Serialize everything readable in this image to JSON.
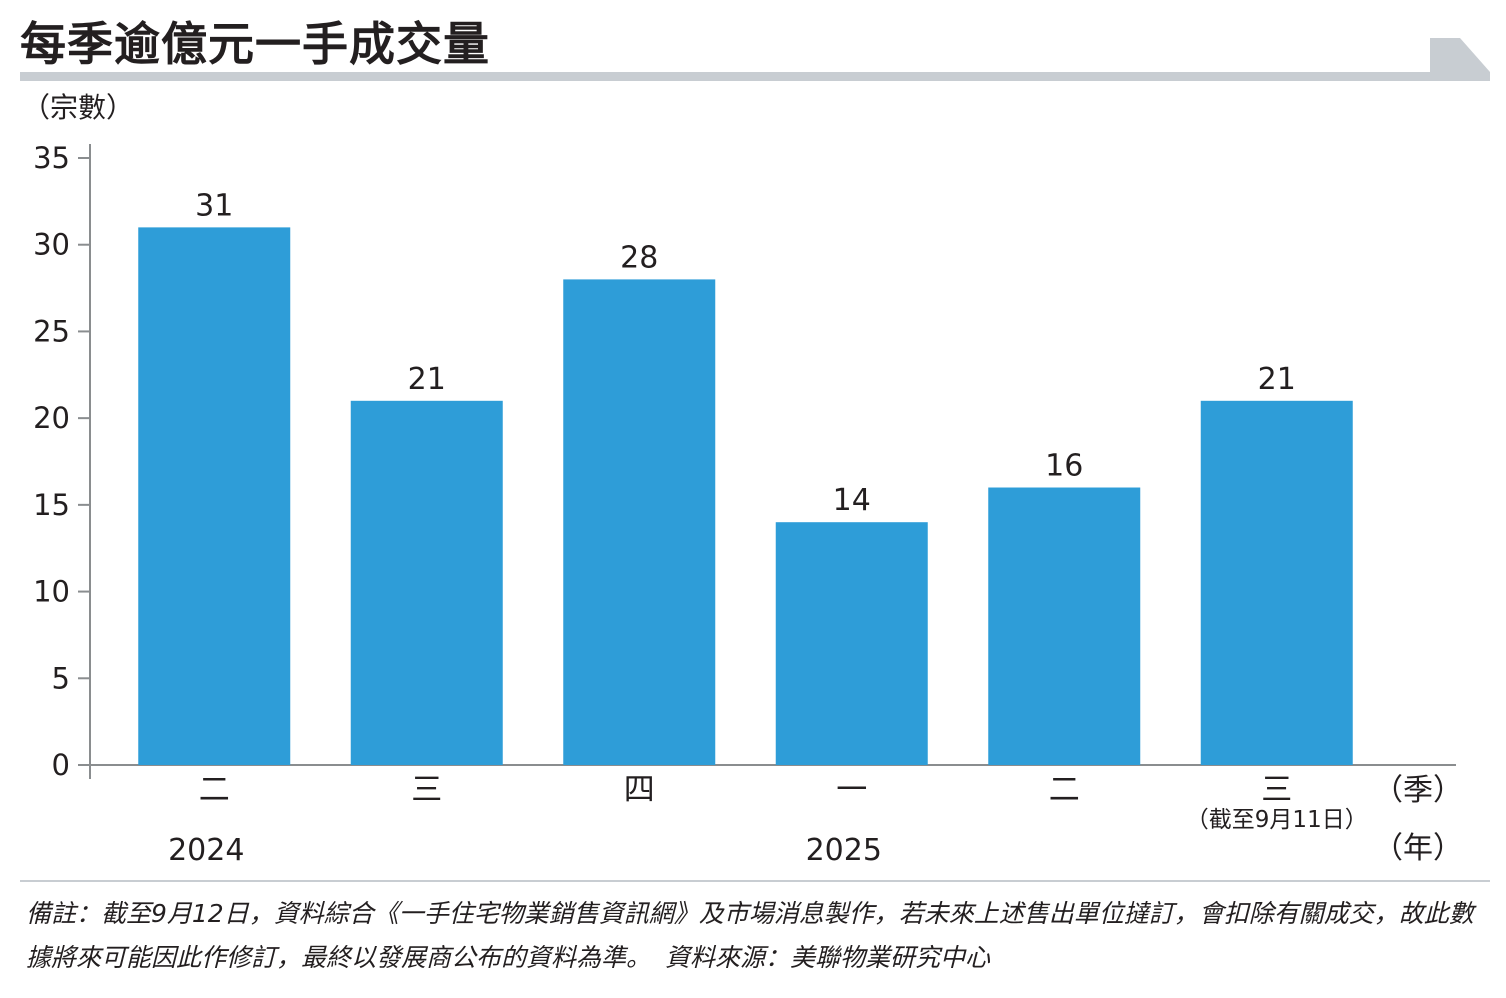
{
  "title": "每季逾億元一手成交量",
  "unit_label": "（宗數）",
  "chart_data": {
    "type": "bar",
    "categories": [
      "二",
      "三",
      "四",
      "一",
      "二",
      "三"
    ],
    "category_sublabels": [
      "",
      "",
      "",
      "",
      "",
      "（截至9月11日）"
    ],
    "values": [
      31,
      21,
      28,
      14,
      16,
      21
    ],
    "years": [
      {
        "label": "2024",
        "category_index": 0
      },
      {
        "label": "2025",
        "category_index": 3
      }
    ],
    "x_unit": "（季）",
    "year_unit": "（年）",
    "ylabel": "（宗數）",
    "ylim": [
      0,
      35
    ],
    "yticks": [
      0,
      5,
      10,
      15,
      20,
      25,
      30,
      35
    ],
    "bar_color": "#2e9dd8",
    "grid": false
  },
  "footnote": {
    "note": "備註：截至9月12日，資料綜合《一手住宅物業銷售資訊網》及市場消息製作，若未來上述售出單位撻訂，會扣除有關成交，故此數據將來可能因此作修訂，最終以發展商公布的資料為準。",
    "source": "資料來源：美聯物業研究中心"
  }
}
